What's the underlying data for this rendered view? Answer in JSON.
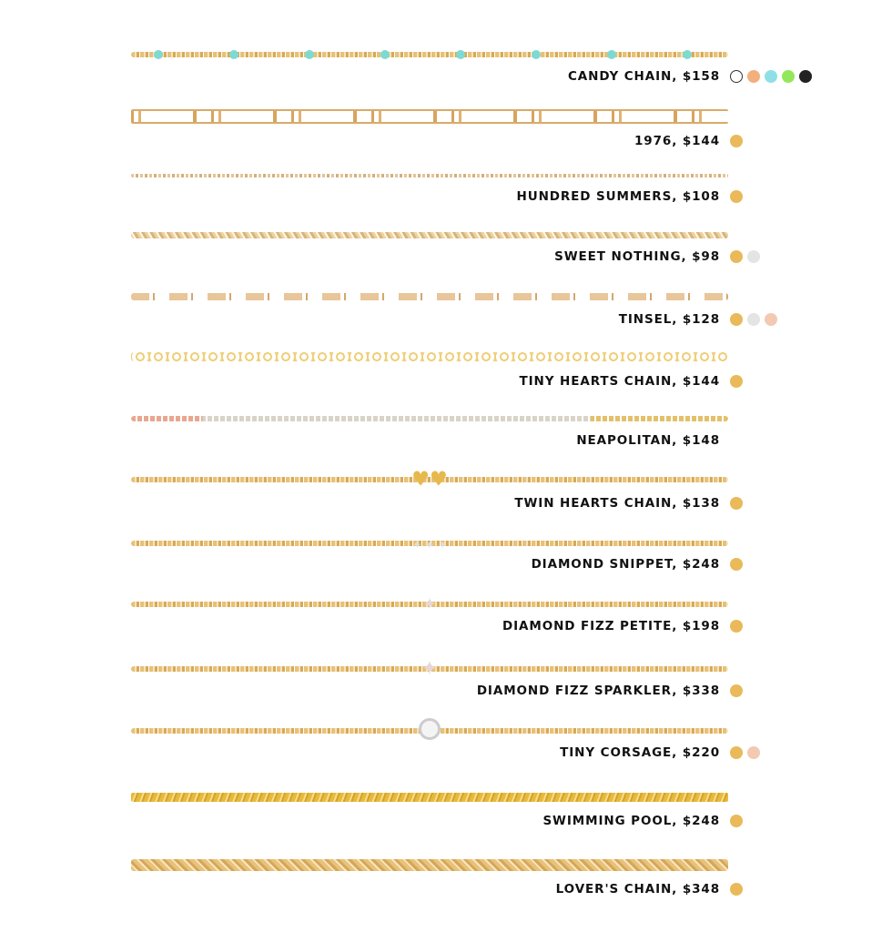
{
  "products": [
    {
      "label": "CANDY CHAIN, $158",
      "swatches": [
        "#ffffff",
        "#f2b07e",
        "#8fe0e6",
        "#93e85a",
        "#222222"
      ]
    },
    {
      "label": "1976, $144",
      "swatches": [
        "#e9b95a"
      ]
    },
    {
      "label": "HUNDRED SUMMERS, $108",
      "swatches": [
        "#e9b95a"
      ]
    },
    {
      "label": "SWEET NOTHING, $98",
      "swatches": [
        "#e9b95a",
        "#e4e4e4"
      ]
    },
    {
      "label": "TINSEL, $128",
      "swatches": [
        "#e9b95a",
        "#e4e4e4",
        "#f3c9b2"
      ]
    },
    {
      "label": "TINY HEARTS CHAIN, $144",
      "swatches": [
        "#e9b95a"
      ]
    },
    {
      "label": "NEAPOLITAN, $148",
      "swatches": []
    },
    {
      "label": "TWIN HEARTS CHAIN, $138",
      "swatches": [
        "#e9b95a"
      ]
    },
    {
      "label": "DIAMOND SNIPPET, $248",
      "swatches": [
        "#e9b95a"
      ]
    },
    {
      "label": "DIAMOND FIZZ PETITE, $198",
      "swatches": [
        "#e9b95a"
      ]
    },
    {
      "label": "DIAMOND FIZZ SPARKLER, $338",
      "swatches": [
        "#e9b95a"
      ]
    },
    {
      "label": "TINY CORSAGE, $220",
      "swatches": [
        "#e9b95a",
        "#f3c9b2"
      ]
    },
    {
      "label": "SWIMMING POOL, $248",
      "swatches": [
        "#e9b95a"
      ]
    },
    {
      "label": "LOVER'S CHAIN, $348",
      "swatches": [
        "#e9b95a"
      ]
    }
  ]
}
